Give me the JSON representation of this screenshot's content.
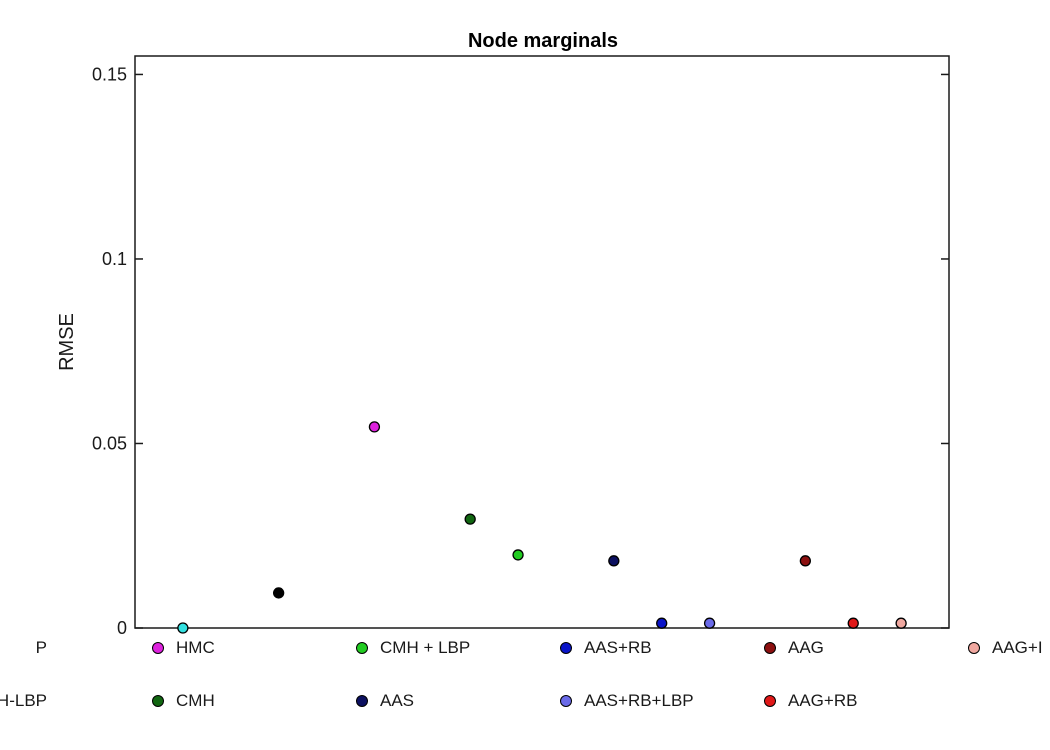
{
  "chart_data": {
    "type": "scatter",
    "title": "Node marginals",
    "xlabel": "",
    "ylabel": "RMSE",
    "xlim": [
      0,
      17
    ],
    "ylim": [
      0,
      0.155
    ],
    "yticks": [
      0,
      0.05,
      0.1,
      0.15
    ],
    "ytick_labels": [
      "0",
      "0.05",
      "0.1",
      "0.15"
    ],
    "grid": false,
    "legend_position": "bottom",
    "series": [
      {
        "name": "",
        "x": 1,
        "y": 0.0,
        "color": "#33e0e0"
      },
      {
        "name": "",
        "x": 3,
        "y": 0.0095,
        "color": "#000000"
      },
      {
        "name": "HMC",
        "x": 5,
        "y": 0.0545,
        "color": "#dd22dd"
      },
      {
        "name": "CMH",
        "x": 7,
        "y": 0.0295,
        "color": "#116611"
      },
      {
        "name": "CMH + LBP",
        "x": 8,
        "y": 0.0198,
        "color": "#22cc22"
      },
      {
        "name": "AAS",
        "x": 10,
        "y": 0.0182,
        "color": "#0c1060"
      },
      {
        "name": "AAS+RB",
        "x": 11,
        "y": 0.0013,
        "color": "#0a14c8"
      },
      {
        "name": "AAS+RB+LBP",
        "x": 12,
        "y": 0.0013,
        "color": "#6a6ae8"
      },
      {
        "name": "AAG",
        "x": 14,
        "y": 0.0182,
        "color": "#8c1010"
      },
      {
        "name": "AAG+RB",
        "x": 15,
        "y": 0.0013,
        "color": "#e01818"
      },
      {
        "name": "",
        "x": 16,
        "y": 0.0013,
        "color": "#f0a8a0"
      }
    ],
    "legend": {
      "row1": [
        {
          "label": "P",
          "color": "",
          "marker": false
        },
        {
          "label": "HMC",
          "color": "#dd22dd",
          "marker": true
        },
        {
          "label": "CMH + LBP",
          "color": "#22cc22",
          "marker": true
        },
        {
          "label": "AAS+RB",
          "color": "#0a14c8",
          "marker": true
        },
        {
          "label": "AAG",
          "color": "#8c1010",
          "marker": true
        },
        {
          "label": "AAG+I",
          "color": "#f0a8a0",
          "marker": true
        }
      ],
      "row2": [
        {
          "label": "H-LBP",
          "color": "",
          "marker": false
        },
        {
          "label": "CMH",
          "color": "#116611",
          "marker": true
        },
        {
          "label": "AAS",
          "color": "#0c1060",
          "marker": true
        },
        {
          "label": "AAS+RB+LBP",
          "color": "#6a6ae8",
          "marker": true
        },
        {
          "label": "AAG+RB",
          "color": "#e01818",
          "marker": true
        }
      ]
    }
  }
}
